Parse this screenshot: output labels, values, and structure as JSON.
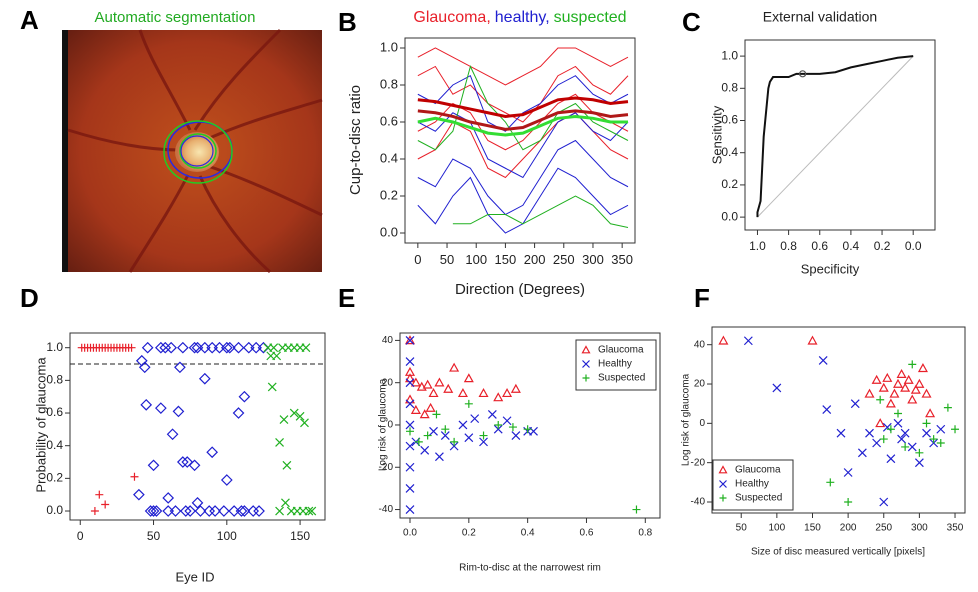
{
  "chart_data": [
    {
      "type": "image",
      "panel": "A",
      "title": "Automatic segmentation",
      "title_color": "#22aa22"
    },
    {
      "type": "line",
      "panel": "B",
      "title_parts": [
        {
          "text": "Glaucoma,",
          "color": "#e8202a"
        },
        {
          "text": "healthy,",
          "color": "#2020d0"
        },
        {
          "text": "suspected",
          "color": "#20b020"
        }
      ],
      "xlabel": "Direction (Degrees)",
      "ylabel": "Cup-to-disc ratio",
      "xlim": [
        -22,
        372
      ],
      "ylim": [
        -0.054,
        1.054
      ],
      "xticks": [
        0,
        50,
        100,
        150,
        200,
        250,
        300,
        350
      ],
      "yticks": [
        {
          "value": 0,
          "label": "0.0"
        },
        0.2,
        0.4,
        0.6,
        0.8,
        {
          "value": 1,
          "label": "1.0"
        }
      ],
      "x": [
        0,
        30,
        60,
        90,
        120,
        150,
        180,
        210,
        240,
        270,
        300,
        330,
        360
      ],
      "series": [
        {
          "color": "#e8202a",
          "width": 1,
          "values": [
            0.85,
            0.9,
            0.75,
            0.8,
            0.7,
            0.65,
            0.6,
            0.7,
            0.85,
            0.9,
            0.8,
            0.75,
            0.85
          ]
        },
        {
          "color": "#e8202a",
          "width": 1,
          "values": [
            0.55,
            0.6,
            0.7,
            0.65,
            0.5,
            0.45,
            0.5,
            0.6,
            0.7,
            0.75,
            0.65,
            0.6,
            0.55
          ]
        },
        {
          "color": "#e8202a",
          "width": 1,
          "values": [
            0.95,
            1.0,
            0.95,
            0.9,
            0.85,
            0.8,
            0.85,
            0.9,
            1.0,
            1.0,
            0.95,
            0.9,
            0.95
          ]
        },
        {
          "color": "#e8202a",
          "width": 1,
          "values": [
            0.4,
            0.45,
            0.6,
            0.55,
            0.35,
            0.3,
            0.4,
            0.5,
            0.6,
            0.65,
            0.55,
            0.45,
            0.4
          ]
        },
        {
          "color": "#2020d0",
          "width": 1,
          "values": [
            0.3,
            0.25,
            0.4,
            0.35,
            0.2,
            0.1,
            0.15,
            0.3,
            0.45,
            0.5,
            0.4,
            0.3,
            0.25
          ]
        },
        {
          "color": "#2020d0",
          "width": 1,
          "values": [
            0.6,
            0.55,
            0.65,
            0.6,
            0.4,
            0.35,
            0.3,
            0.45,
            0.6,
            0.65,
            0.55,
            0.5,
            0.6
          ]
        },
        {
          "color": "#2020d0",
          "width": 1,
          "values": [
            0.15,
            0.05,
            0.2,
            0.3,
            0.1,
            0.0,
            0.05,
            0.2,
            0.35,
            0.3,
            0.2,
            0.1,
            0.15
          ]
        },
        {
          "color": "#2020d0",
          "width": 1,
          "values": [
            0.75,
            0.7,
            0.8,
            0.85,
            0.6,
            0.55,
            0.65,
            0.7,
            0.8,
            0.85,
            0.75,
            0.7,
            0.75
          ]
        },
        {
          "color": "#20b020",
          "width": 1,
          "values": [
            null,
            null,
            0.05,
            0.05,
            0.1,
            0.1,
            0.05,
            0.1,
            0.15,
            0.2,
            0.15,
            0.05,
            0.03
          ]
        },
        {
          "color": "#20b020",
          "width": 1,
          "values": [
            0.5,
            0.45,
            0.55,
            0.9,
            0.7,
            0.6,
            0.45,
            0.5,
            0.65,
            0.7,
            0.6,
            0.55,
            0.5
          ]
        },
        {
          "color": "#c00000",
          "width": 3,
          "values": [
            0.72,
            0.71,
            0.69,
            0.67,
            0.65,
            0.63,
            0.64,
            0.68,
            0.72,
            0.73,
            0.72,
            0.7,
            0.71
          ]
        },
        {
          "color": "#b01818",
          "width": 3,
          "values": [
            0.66,
            0.65,
            0.63,
            0.6,
            0.58,
            0.56,
            0.57,
            0.61,
            0.65,
            0.66,
            0.65,
            0.63,
            0.64
          ]
        },
        {
          "color": "#33dd33",
          "width": 3,
          "values": [
            0.6,
            0.62,
            0.6,
            0.57,
            0.54,
            0.53,
            0.54,
            0.58,
            0.62,
            0.63,
            0.62,
            0.6,
            0.6
          ]
        }
      ]
    },
    {
      "type": "line",
      "panel": "C",
      "title": "External validation",
      "xlabel": "Specificity",
      "ylabel": "Sensitivity",
      "xlim": [
        1.08,
        -0.14
      ],
      "ylim": [
        -0.08,
        1.1
      ],
      "xticks": [
        {
          "value": 1,
          "label": "1.0"
        },
        0.8,
        0.6,
        0.4,
        0.2,
        {
          "value": 0,
          "label": "0.0"
        }
      ],
      "yticks": [
        {
          "value": 0,
          "label": "0.0"
        },
        0.2,
        0.4,
        0.6,
        0.8,
        {
          "value": 1,
          "label": "1.0"
        }
      ],
      "series": [
        {
          "color": "#bbbbbb",
          "width": 1,
          "x": [
            1,
            0
          ],
          "values": [
            0,
            1
          ]
        },
        {
          "color": "#111111",
          "width": 2,
          "x": [
            1.0,
            1.0,
            0.98,
            0.97,
            0.96,
            0.95,
            0.94,
            0.93,
            0.92,
            0.9,
            0.8,
            0.75,
            0.6,
            0.5,
            0.4,
            0.3,
            0.2,
            0.1,
            0.0
          ],
          "values": [
            0.0,
            0.03,
            0.1,
            0.3,
            0.5,
            0.6,
            0.7,
            0.8,
            0.84,
            0.87,
            0.87,
            0.89,
            0.89,
            0.9,
            0.93,
            0.95,
            0.97,
            0.99,
            1.0
          ]
        },
        {
          "color": "#555555",
          "marker": "circle",
          "x": [
            0.71
          ],
          "values": [
            0.89
          ]
        }
      ]
    },
    {
      "type": "scatter",
      "panel": "D",
      "xlabel": "Eye ID",
      "ylabel": "Probability of glaucoma",
      "xlim": [
        -7,
        167
      ],
      "ylim": [
        -0.055,
        1.09
      ],
      "xticks": [
        0,
        50,
        100,
        150
      ],
      "yticks": [
        {
          "value": 0,
          "label": "0.0"
        },
        0.2,
        0.4,
        0.6,
        0.8,
        {
          "value": 1,
          "label": "1.0"
        }
      ],
      "hline": 0.9,
      "series": [
        {
          "color": "#e8202a",
          "marker": "plus",
          "x": [
            1,
            3,
            5,
            7,
            9,
            11,
            13,
            15,
            17,
            19,
            21,
            23,
            25,
            27,
            29,
            31,
            33,
            35,
            10,
            13,
            17,
            37
          ],
          "values": [
            1,
            1,
            1,
            1,
            1,
            1,
            1,
            1,
            1,
            1,
            1,
            1,
            1,
            1,
            1,
            1,
            1,
            1,
            0.0,
            0.1,
            0.04,
            0.21
          ]
        },
        {
          "color": "#2020d0",
          "marker": "diamond",
          "x": [
            40,
            42,
            44,
            46,
            48,
            50,
            52,
            55,
            58,
            60,
            62,
            65,
            68,
            70,
            72,
            75,
            78,
            80,
            82,
            85,
            88,
            90,
            92,
            95,
            98,
            100,
            102,
            105,
            108,
            110,
            112,
            115,
            118,
            120,
            122,
            125,
            45,
            55,
            63,
            67,
            73,
            78,
            85,
            90,
            100,
            108,
            112,
            50,
            60,
            70,
            80
          ],
          "values": [
            0.1,
            0.92,
            0.88,
            1.0,
            0.0,
            0.0,
            0.0,
            1.0,
            1.0,
            0.0,
            1.0,
            0.0,
            0.88,
            1.0,
            0.0,
            0.0,
            1.0,
            1.0,
            0.0,
            1.0,
            0.0,
            1.0,
            0.0,
            1.0,
            0.0,
            1.0,
            1.0,
            0.0,
            1.0,
            0.0,
            0.0,
            1.0,
            0.0,
            1.0,
            0.0,
            1.0,
            0.65,
            0.63,
            0.47,
            0.61,
            0.3,
            0.28,
            0.81,
            0.36,
            0.19,
            0.6,
            0.7,
            0.28,
            0.08,
            0.3,
            0.05
          ]
        },
        {
          "color": "#20b020",
          "marker": "cross",
          "x": [
            128,
            130,
            132,
            134,
            136,
            138,
            140,
            142,
            144,
            146,
            148,
            150,
            152,
            154,
            156,
            158,
            131,
            136,
            139,
            141,
            146,
            150,
            153
          ],
          "values": [
            1.0,
            0.95,
            1.0,
            0.95,
            0.0,
            1.0,
            0.05,
            1.0,
            0.0,
            1.0,
            0.0,
            1.0,
            0.0,
            1.0,
            0.0,
            0.0,
            0.76,
            0.42,
            0.56,
            0.28,
            0.6,
            0.58,
            0.54
          ]
        }
      ]
    },
    {
      "type": "scatter",
      "panel": "E",
      "xlabel": "Rim-to-disc at the narrowest rim",
      "ylabel": "Log risk of glaucoma",
      "xlim": [
        -0.034,
        0.85
      ],
      "ylim": [
        -44,
        43.5
      ],
      "xticks": [
        {
          "value": 0,
          "label": "0.0"
        },
        0.2,
        0.4,
        0.6,
        0.8
      ],
      "yticks": [
        -40,
        -20,
        0,
        20,
        40
      ],
      "legend": "top-right",
      "series": [
        {
          "name": "Glaucoma",
          "color": "#e8202a",
          "marker": "triangle",
          "x": [
            0,
            0,
            0,
            0,
            0.02,
            0.04,
            0.06,
            0.08,
            0.1,
            0.13,
            0.15,
            0.18,
            0.2,
            0.25,
            0.3,
            0.33,
            0.36,
            0.02,
            0.05,
            0.07
          ],
          "values": [
            40,
            25,
            22,
            12,
            20,
            18,
            19,
            15,
            20,
            17,
            27,
            15,
            22,
            15,
            13,
            15,
            17,
            7,
            5,
            8
          ]
        },
        {
          "name": "Healthy",
          "color": "#2020d0",
          "marker": "cross",
          "x": [
            0,
            0,
            0,
            0,
            0,
            0,
            0,
            0,
            0,
            0.02,
            0.05,
            0.08,
            0.1,
            0.12,
            0.15,
            0.18,
            0.2,
            0.22,
            0.25,
            0.28,
            0.3,
            0.33,
            0.36,
            0.4,
            0.42
          ],
          "values": [
            40,
            30,
            20,
            10,
            0,
            -10,
            -20,
            -30,
            -40,
            -8,
            -12,
            -3,
            -15,
            -5,
            -10,
            0,
            -6,
            3,
            -8,
            5,
            -2,
            2,
            -5,
            -3,
            -3
          ]
        },
        {
          "name": "Suspected",
          "color": "#20b020",
          "marker": "plus",
          "x": [
            0,
            0.03,
            0.06,
            0.09,
            0.12,
            0.15,
            0.2,
            0.25,
            0.3,
            0.35,
            0.4,
            0.77
          ],
          "values": [
            -3,
            -8,
            -5,
            5,
            -2,
            -8,
            10,
            -5,
            0,
            -1,
            -2,
            -40
          ]
        }
      ]
    },
    {
      "type": "scatter",
      "panel": "F",
      "xlabel": "Size of disc measured vertically [pixels]",
      "ylabel": "Log risk of glaucoma",
      "xlim": [
        9,
        364
      ],
      "ylim": [
        -45.6,
        49
      ],
      "xticks": [
        50,
        100,
        150,
        200,
        250,
        300,
        350
      ],
      "yticks": [
        -40,
        -20,
        0,
        20,
        40
      ],
      "legend": "bottom-left",
      "series": [
        {
          "name": "Glaucoma",
          "color": "#e8202a",
          "marker": "triangle",
          "x": [
            25,
            150,
            240,
            250,
            255,
            260,
            265,
            270,
            275,
            280,
            285,
            290,
            295,
            300,
            305,
            310,
            315,
            230,
            245
          ],
          "values": [
            42,
            42,
            22,
            18,
            23,
            10,
            15,
            20,
            25,
            18,
            22,
            12,
            17,
            20,
            28,
            15,
            5,
            15,
            0
          ]
        },
        {
          "name": "Healthy",
          "color": "#2020d0",
          "marker": "cross",
          "x": [
            60,
            100,
            165,
            170,
            190,
            200,
            210,
            220,
            230,
            240,
            250,
            255,
            260,
            270,
            275,
            280,
            290,
            300,
            310,
            320,
            330
          ],
          "values": [
            42,
            18,
            32,
            7,
            -5,
            -25,
            10,
            -15,
            -5,
            -10,
            -40,
            -2,
            -18,
            0,
            -8,
            -5,
            -12,
            -20,
            -5,
            -10,
            -3
          ]
        },
        {
          "name": "Suspected",
          "color": "#20b020",
          "marker": "plus",
          "x": [
            200,
            175,
            250,
            260,
            270,
            280,
            290,
            300,
            310,
            320,
            330,
            340,
            350,
            245
          ],
          "values": [
            -40,
            -30,
            -8,
            -3,
            5,
            -12,
            30,
            -15,
            0,
            -8,
            -10,
            8,
            -3,
            12
          ]
        }
      ]
    }
  ]
}
